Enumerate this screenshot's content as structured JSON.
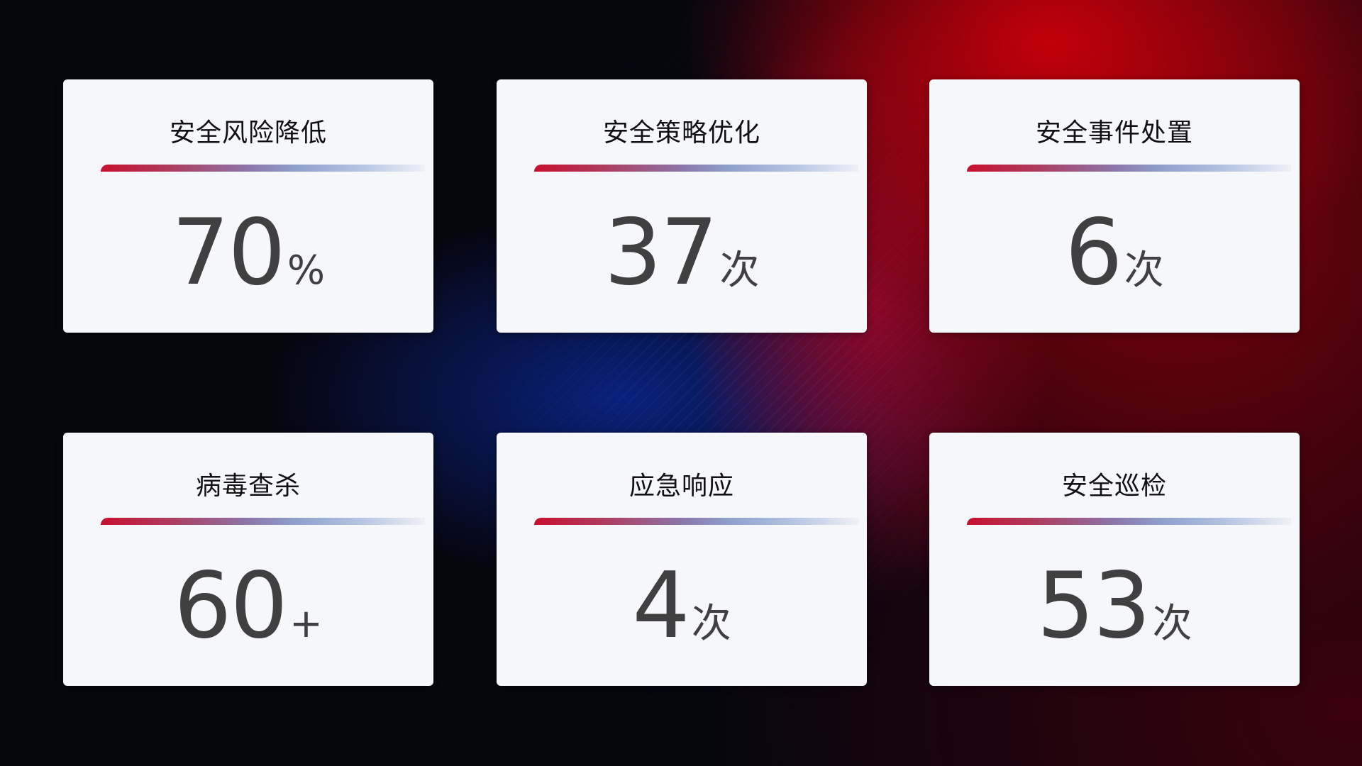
{
  "cards": [
    {
      "title": "安全风险降低",
      "value": "70",
      "unit": "%"
    },
    {
      "title": "安全策略优化",
      "value": "37",
      "unit": "次"
    },
    {
      "title": "安全事件处置",
      "value": "6",
      "unit": "次"
    },
    {
      "title": "病毒查杀",
      "value": "60",
      "unit": "+"
    },
    {
      "title": "应急响应",
      "value": "4",
      "unit": "次"
    },
    {
      "title": "安全巡检",
      "value": "53",
      "unit": "次"
    }
  ],
  "colors": {
    "accent_red": "#c8102e",
    "accent_blue": "#8da0cc",
    "card_bg": "#f6f7fb",
    "number": "#404040"
  }
}
